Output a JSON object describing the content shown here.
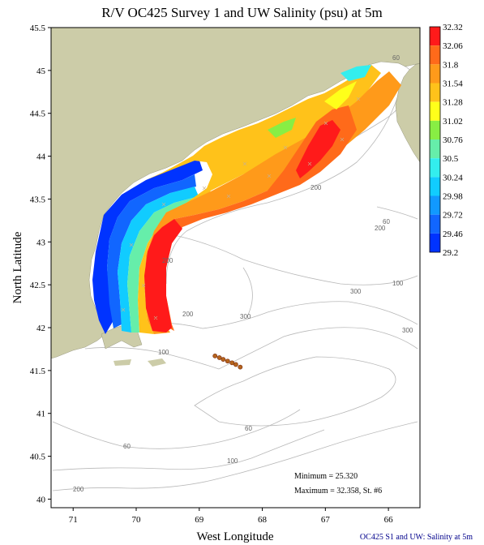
{
  "title": "R/V OC425 Survey 1 and UW Salinity (psu) at 5m",
  "axes": {
    "xlabel": "West Longitude",
    "ylabel": "North Latitude",
    "x_ticks": [
      "71",
      "70",
      "69",
      "68",
      "67",
      "66"
    ],
    "y_ticks": [
      "45.5",
      "45",
      "44.5",
      "44",
      "43.5",
      "43",
      "42.5",
      "42",
      "41.5",
      "41",
      "40.5",
      "40"
    ],
    "x_range": [
      71.35,
      65.5
    ],
    "y_range": [
      39.9,
      45.5
    ]
  },
  "colorbar": {
    "labels": [
      "32.32",
      "32.06",
      "31.8",
      "31.54",
      "31.28",
      "31.02",
      "30.76",
      "30.5",
      "30.24",
      "29.98",
      "29.72",
      "29.46",
      "29.2"
    ],
    "colors": [
      "#ff1a1a",
      "#ff6a1a",
      "#ff9a1a",
      "#ffc21a",
      "#ffff1a",
      "#88ee44",
      "#66eeaa",
      "#33eeee",
      "#11ccff",
      "#1199ff",
      "#1166ff",
      "#0033ff"
    ]
  },
  "bathymetry_labels": [
    "60",
    "200",
    "60",
    "200",
    "100",
    "300",
    "200",
    "100",
    "200",
    "300",
    "300",
    "100",
    "60",
    "60",
    "100",
    "200"
  ],
  "stations": [
    {
      "lon": 68.75,
      "lat": 41.67
    },
    {
      "lon": 68.68,
      "lat": 41.65
    },
    {
      "lon": 68.62,
      "lat": 41.63
    },
    {
      "lon": 68.55,
      "lat": 41.61
    },
    {
      "lon": 68.48,
      "lat": 41.59
    },
    {
      "lon": 68.42,
      "lat": 41.57
    },
    {
      "lon": 68.35,
      "lat": 41.54
    }
  ],
  "stats": {
    "minimum": "Minimum = 25.320",
    "maximum": "Maximum = 32.358, St. #6"
  },
  "footer": "OC425  S1 and UW: Salinity at 5m",
  "colors": {
    "land": "#cccca8",
    "contour": "#b8b8b8",
    "station": "#b5651d"
  }
}
